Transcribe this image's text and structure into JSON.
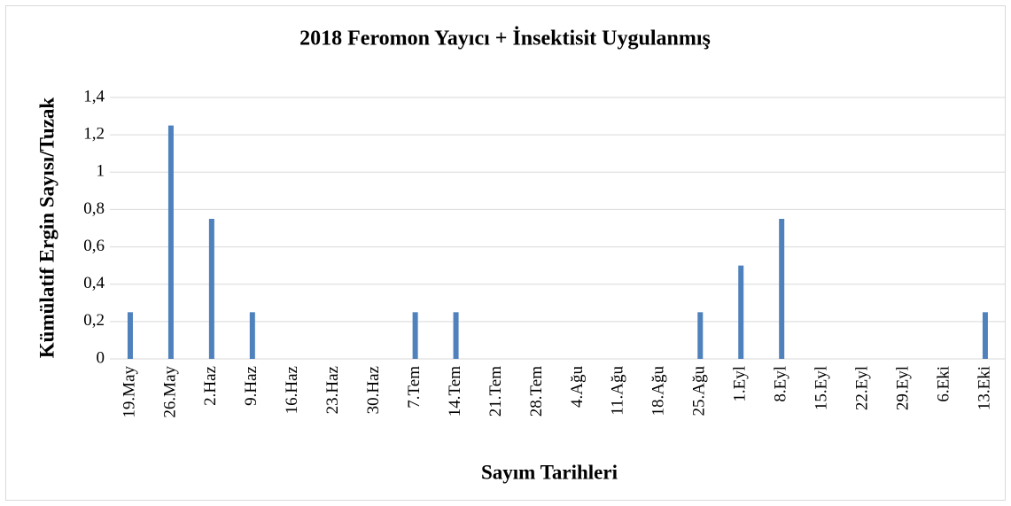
{
  "chart_data": {
    "type": "bar",
    "title": "2018 Feromon Yayıcı + İnsektisit Uygulanmış",
    "x_label": "Sayım Tarihleri",
    "y_label": "Kümülatif Ergin Sayısı/Tuzak",
    "categories": [
      "19.May",
      "26.May",
      "2.Haz",
      "9.Haz",
      "16.Haz",
      "23.Haz",
      "30.Haz",
      "7.Tem",
      "14.Tem",
      "21.Tem",
      "28.Tem",
      "4.Ağu",
      "11.Ağu",
      "18.Ağu",
      "25.Ağu",
      "1.Eyl",
      "8.Eyl",
      "15.Eyl",
      "22.Eyl",
      "29.Eyl",
      "6.Eki",
      "13.Eki"
    ],
    "values": [
      0.25,
      1.25,
      0.75,
      0.25,
      0,
      0,
      0,
      0.25,
      0.25,
      0,
      0,
      0,
      0,
      0,
      0.25,
      0.5,
      0.75,
      0,
      0,
      0,
      0,
      0.25
    ],
    "color": "#4f81bd",
    "ylim": [
      0,
      1.4
    ],
    "yticks": [
      0,
      {
        "value": 0.2,
        "label": "0,2"
      },
      {
        "value": 0.4,
        "label": "0,4"
      },
      {
        "value": 0.6,
        "label": "0,6"
      },
      {
        "value": 0.8,
        "label": "0,8"
      },
      1,
      {
        "value": 1.2,
        "label": "1,2"
      },
      {
        "value": 1.4,
        "label": "1,4"
      }
    ],
    "grid": true
  }
}
